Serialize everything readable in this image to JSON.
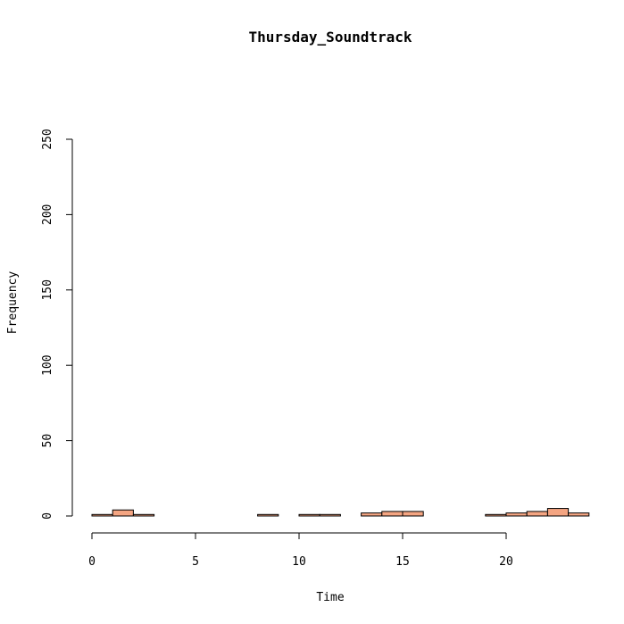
{
  "chart_data": {
    "type": "bar",
    "title": "Thursday_Soundtrack",
    "xlabel": "Time",
    "ylabel": "Frequency",
    "xlim": [
      -0.1,
      24
    ],
    "ylim": [
      0,
      250
    ],
    "xticks": [
      0,
      5,
      10,
      15,
      20
    ],
    "yticks": [
      0,
      50,
      100,
      150,
      200,
      250
    ],
    "bin_width": 1,
    "bins": [
      {
        "start": 0,
        "count": 1
      },
      {
        "start": 1,
        "count": 4
      },
      {
        "start": 2,
        "count": 1
      },
      {
        "start": 3,
        "count": 0
      },
      {
        "start": 4,
        "count": 0
      },
      {
        "start": 5,
        "count": 0
      },
      {
        "start": 6,
        "count": 0
      },
      {
        "start": 7,
        "count": 0
      },
      {
        "start": 8,
        "count": 1
      },
      {
        "start": 9,
        "count": 0
      },
      {
        "start": 10,
        "count": 1
      },
      {
        "start": 11,
        "count": 1
      },
      {
        "start": 12,
        "count": 0
      },
      {
        "start": 13,
        "count": 2
      },
      {
        "start": 14,
        "count": 3
      },
      {
        "start": 15,
        "count": 3
      },
      {
        "start": 16,
        "count": 0
      },
      {
        "start": 17,
        "count": 0
      },
      {
        "start": 18,
        "count": 0
      },
      {
        "start": 19,
        "count": 1
      },
      {
        "start": 20,
        "count": 2
      },
      {
        "start": 21,
        "count": 3
      },
      {
        "start": 22,
        "count": 5
      },
      {
        "start": 23,
        "count": 2
      }
    ],
    "bar_color": "#F4A582",
    "grid": false
  }
}
